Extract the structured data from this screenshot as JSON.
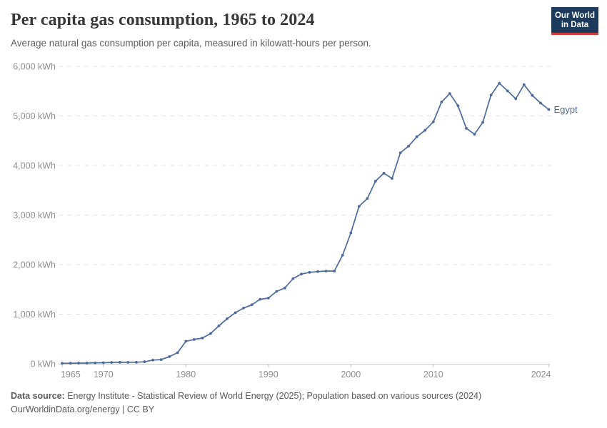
{
  "header": {
    "title": "Per capita gas consumption, 1965 to 2024",
    "subtitle": "Average natural gas consumption per capita, measured in kilowatt-hours per person."
  },
  "logo": {
    "line1": "Our World",
    "line2": "in Data",
    "bg_color": "#1b3a5c",
    "accent_color": "#cf3c3c"
  },
  "chart_data": {
    "type": "line",
    "title": "Per capita gas consumption, 1965 to 2024",
    "xlabel": "",
    "ylabel": "",
    "ylim": [
      0,
      6000
    ],
    "xlim": [
      1965,
      2024
    ],
    "grid": "horizontal-dashed",
    "legend_position": "end-of-line",
    "end_label": "Egypt",
    "yticks": [
      {
        "value": 0,
        "label": "0 kWh"
      },
      {
        "value": 1000,
        "label": "1,000 kWh"
      },
      {
        "value": 2000,
        "label": "2,000 kWh"
      },
      {
        "value": 3000,
        "label": "3,000 kWh"
      },
      {
        "value": 4000,
        "label": "4,000 kWh"
      },
      {
        "value": 5000,
        "label": "5,000 kWh"
      },
      {
        "value": 6000,
        "label": "6,000 kWh"
      }
    ],
    "xticks": [
      {
        "value": 1965,
        "label": "1965"
      },
      {
        "value": 1970,
        "label": "1970"
      },
      {
        "value": 1980,
        "label": "1980"
      },
      {
        "value": 1990,
        "label": "1990"
      },
      {
        "value": 2000,
        "label": "2000"
      },
      {
        "value": 2010,
        "label": "2010"
      },
      {
        "value": 2024,
        "label": "2024"
      }
    ],
    "series": [
      {
        "name": "Egypt",
        "color": "#4c6a9c",
        "x": [
          1965,
          1966,
          1967,
          1968,
          1969,
          1970,
          1971,
          1972,
          1973,
          1974,
          1975,
          1976,
          1977,
          1978,
          1979,
          1980,
          1981,
          1982,
          1983,
          1984,
          1985,
          1986,
          1987,
          1988,
          1989,
          1990,
          1991,
          1992,
          1993,
          1994,
          1995,
          1996,
          1997,
          1998,
          1999,
          2000,
          2001,
          2002,
          2003,
          2004,
          2005,
          2006,
          2007,
          2008,
          2009,
          2010,
          2011,
          2012,
          2013,
          2014,
          2015,
          2016,
          2017,
          2018,
          2019,
          2020,
          2021,
          2022,
          2023,
          2024
        ],
        "values": [
          10,
          12,
          14,
          15,
          18,
          22,
          28,
          32,
          30,
          32,
          40,
          75,
          85,
          145,
          225,
          455,
          490,
          520,
          610,
          765,
          910,
          1030,
          1125,
          1190,
          1300,
          1325,
          1460,
          1530,
          1720,
          1810,
          1845,
          1860,
          1870,
          1870,
          2190,
          2640,
          3175,
          3335,
          3685,
          3845,
          3740,
          4255,
          4390,
          4580,
          4710,
          4880,
          5280,
          5450,
          5205,
          4750,
          4630,
          4870,
          5420,
          5660,
          5505,
          5345,
          5630,
          5415,
          5260,
          5130
        ]
      }
    ],
    "axis_color": "#c9c9c9",
    "gridline_color": "#e3e3e3",
    "tick_text_color": "#8f8f8f"
  },
  "footer": {
    "source_label": "Data source:",
    "source_text": " Energy Institute - Statistical Review of World Energy (2025); Population based on various sources (2024)",
    "url": "OurWorldinData.org/energy",
    "separator": " | ",
    "license": "CC BY"
  }
}
